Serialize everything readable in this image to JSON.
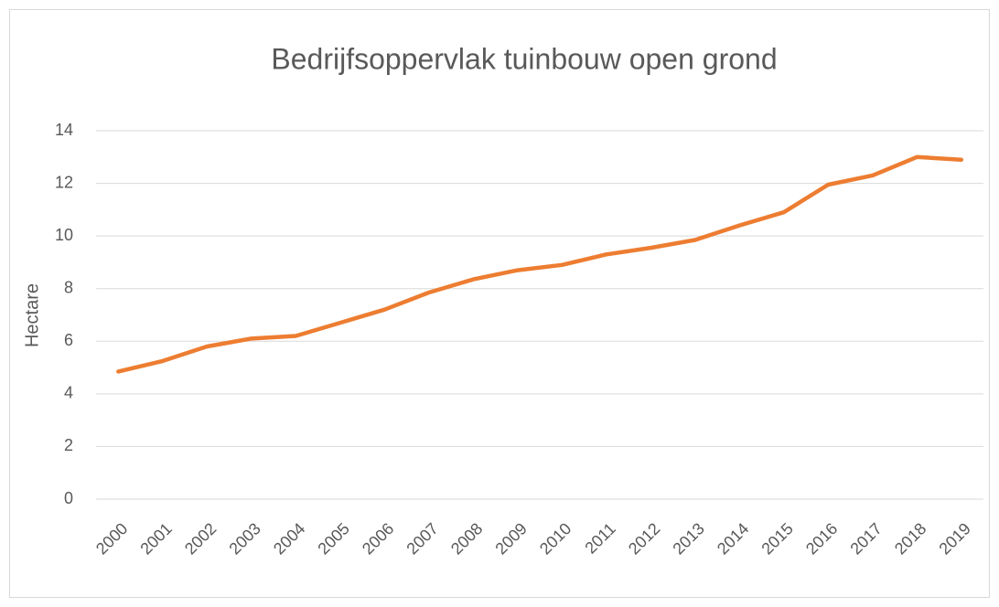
{
  "chart_data": {
    "type": "line",
    "title": "Bedrijfsoppervlak tuinbouw open grond",
    "y_label": "Hectare",
    "categories": [
      "2000",
      "2001",
      "2002",
      "2003",
      "2004",
      "2005",
      "2006",
      "2007",
      "2008",
      "2009",
      "2010",
      "2011",
      "2012",
      "2013",
      "2014",
      "2015",
      "2016",
      "2017",
      "2018",
      "2019"
    ],
    "values": [
      4.85,
      5.25,
      5.8,
      6.1,
      6.2,
      6.7,
      7.2,
      7.85,
      8.35,
      8.7,
      8.9,
      9.3,
      9.55,
      9.85,
      10.4,
      10.9,
      11.95,
      12.3,
      13.0,
      12.9
    ],
    "color": "#ed7d31",
    "ylim": [
      0,
      14
    ],
    "yticks": [
      0,
      2,
      4,
      6,
      8,
      10,
      12,
      14
    ],
    "grid": true
  }
}
